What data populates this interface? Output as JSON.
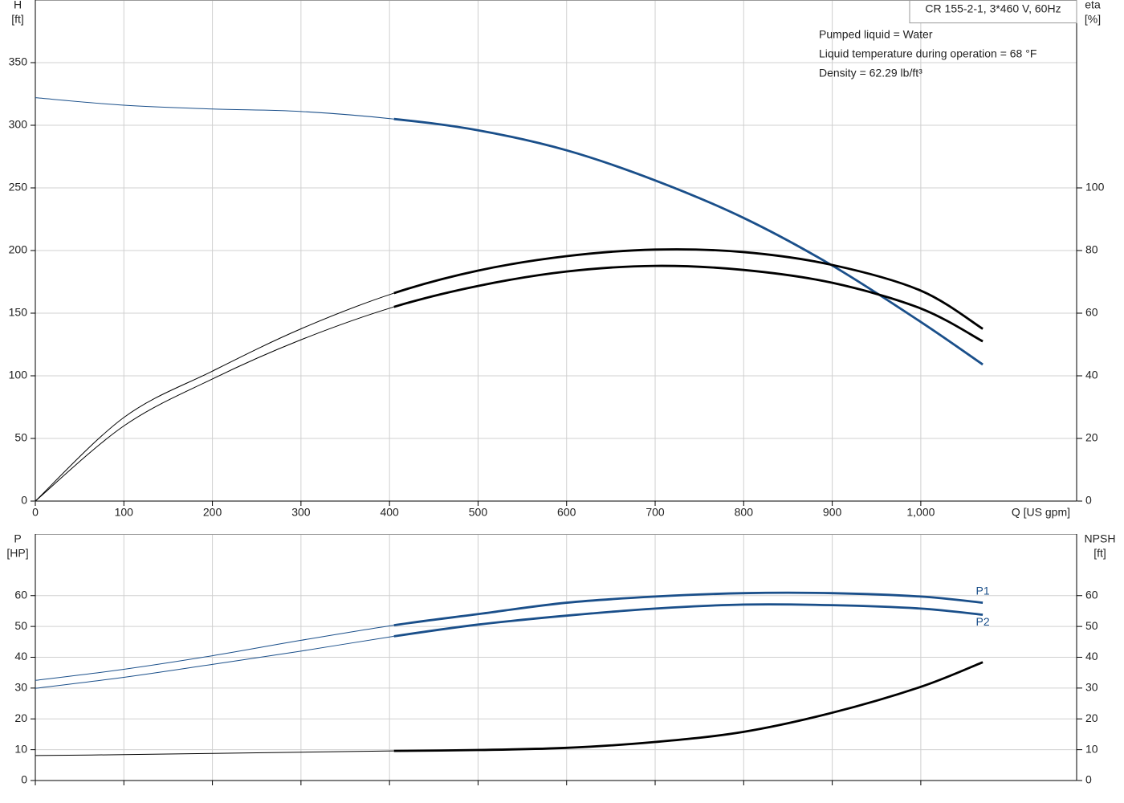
{
  "chart_data": [
    {
      "type": "line",
      "title": "CR 155-2-1, 3*460 V, 60Hz",
      "annotations": [
        "Pumped liquid = Water",
        "Liquid temperature during operation = 68 °F",
        "Density = 62.29 lb/ft³"
      ],
      "xlabel": "Q [US gpm]",
      "ylabel": "H",
      "yunit": "[ft]",
      "y2label": "eta",
      "y2unit": "[%]",
      "x": [
        0,
        100,
        200,
        300,
        405,
        500,
        600,
        700,
        800,
        900,
        1000,
        1070
      ],
      "xlim": [
        0,
        1176
      ],
      "xticks": [
        0,
        100,
        200,
        300,
        400,
        500,
        600,
        700,
        800,
        900,
        {
          "value": 1000,
          "label": "1,000"
        }
      ],
      "ylim": [
        0,
        400
      ],
      "yticks": [
        0,
        50,
        100,
        150,
        200,
        250,
        300,
        350
      ],
      "y2lim": [
        0,
        160
      ],
      "y2ticks": [
        0,
        20,
        40,
        60,
        80,
        100
      ],
      "grid": true,
      "thick_from": 405,
      "series": [
        {
          "color": "#1a4f8a",
          "axis": "y",
          "values": [
            322,
            316,
            313,
            311,
            305,
            296,
            280,
            256,
            226,
            188,
            143,
            109
          ]
        },
        {
          "color": "#000000",
          "axis": "y2",
          "values": [
            0,
            26.7,
            41.5,
            55,
            66.4,
            73.6,
            78.2,
            80.3,
            79.5,
            75.4,
            67.2,
            55
          ]
        },
        {
          "color": "#000000",
          "axis": "y2",
          "values": [
            0,
            24,
            39,
            51.5,
            62,
            68.7,
            73.3,
            75.1,
            73.8,
            69.7,
            61.5,
            51
          ]
        }
      ]
    },
    {
      "type": "line",
      "ylabel": "P",
      "yunit": "[HP]",
      "y2label": "NPSH",
      "y2unit": "[ft]",
      "x": [
        0,
        100,
        200,
        300,
        405,
        500,
        600,
        700,
        800,
        900,
        1000,
        1070
      ],
      "xlim": [
        0,
        1176
      ],
      "ylim": [
        0,
        80
      ],
      "yticks": [
        0,
        10,
        20,
        30,
        40,
        50,
        60
      ],
      "y2lim": [
        0,
        80
      ],
      "y2ticks": [
        0,
        10,
        20,
        30,
        40,
        50,
        60
      ],
      "grid": true,
      "thick_from": 405,
      "series": [
        {
          "name": "P1",
          "color": "#1a4f8a",
          "axis": "y",
          "values": [
            32.5,
            36.1,
            40.5,
            45.5,
            50.4,
            54,
            57.7,
            59.7,
            60.8,
            60.8,
            59.7,
            57.7
          ]
        },
        {
          "name": "P2",
          "color": "#1a4f8a",
          "axis": "y",
          "values": [
            29.9,
            33.5,
            37.7,
            42,
            46.8,
            50.6,
            53.5,
            55.8,
            57.1,
            56.9,
            55.8,
            53.8
          ]
        },
        {
          "color": "#000000",
          "axis": "y2",
          "values": [
            8.1,
            8.4,
            8.8,
            9.2,
            9.6,
            9.9,
            10.6,
            12.5,
            15.8,
            22,
            30.4,
            38.4
          ]
        }
      ]
    }
  ]
}
